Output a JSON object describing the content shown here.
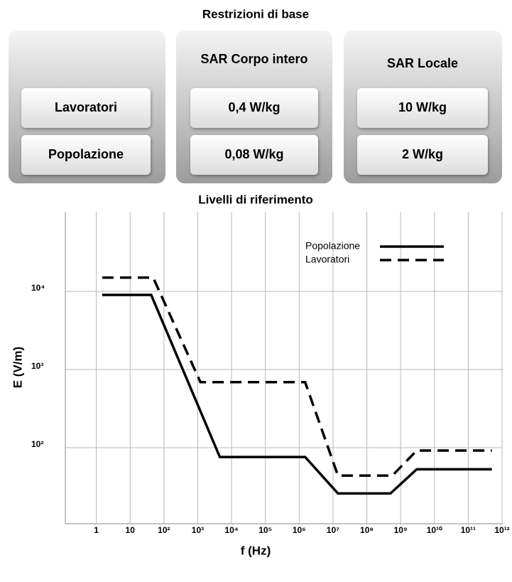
{
  "restrictions": {
    "title": "Restrizioni di base",
    "rows": [
      "Lavoratori",
      "Popolazione"
    ],
    "columns": [
      {
        "header": "SAR Corpo intero",
        "cells": [
          "0,4 W/kg",
          "0,08 W/kg"
        ]
      },
      {
        "header": "SAR Locale",
        "cells": [
          "10 W/kg",
          "2 W/kg"
        ]
      }
    ]
  },
  "chart_data": {
    "type": "line",
    "title": "Livelli di riferimento",
    "xlabel": "f (Hz)",
    "ylabel": "E (V/m)",
    "xscale": "log",
    "yscale": "log",
    "grid": true,
    "legend": "upper right",
    "xlim": [
      0.1,
      1000000000000
    ],
    "ylim": [
      10,
      100000
    ],
    "xticks": [
      1,
      10,
      {
        "value": 100,
        "label": "10²"
      },
      {
        "value": 1000,
        "label": "10³"
      },
      {
        "value": 10000,
        "label": "10⁴"
      },
      {
        "value": 100000,
        "label": "10⁵"
      },
      {
        "value": 1000000,
        "label": "10⁶"
      },
      {
        "value": 10000000,
        "label": "10⁷"
      },
      {
        "value": 100000000,
        "label": "10⁸"
      },
      {
        "value": 1000000000,
        "label": "10⁹"
      },
      {
        "value": 10000000000,
        "label": "10¹⁰"
      },
      {
        "value": 100000000000,
        "label": "10¹¹"
      },
      {
        "value": 1000000000000,
        "label": "10¹²"
      }
    ],
    "yticks": [
      {
        "value": 100,
        "label": "10²"
      },
      {
        "value": 1000,
        "label": "10³"
      },
      {
        "value": 10000,
        "label": "10⁴"
      }
    ],
    "series": [
      {
        "name": "Popolazione",
        "color": "#000000",
        "style": "solid",
        "x": [
          1.5,
          42,
          4500,
          1500000,
          14000000,
          500000000,
          3000000000,
          500000000000
        ],
        "values": [
          9000,
          9000,
          76,
          76,
          26,
          26,
          53,
          53
        ]
      },
      {
        "name": "Lavoratori",
        "color": "#000000",
        "style": "dashed",
        "x": [
          1.5,
          48,
          1200,
          1500000,
          14000000,
          570000000,
          3000000000,
          500000000000
        ],
        "values": [
          15000,
          15000,
          690,
          690,
          44,
          44,
          92,
          92
        ]
      }
    ]
  }
}
